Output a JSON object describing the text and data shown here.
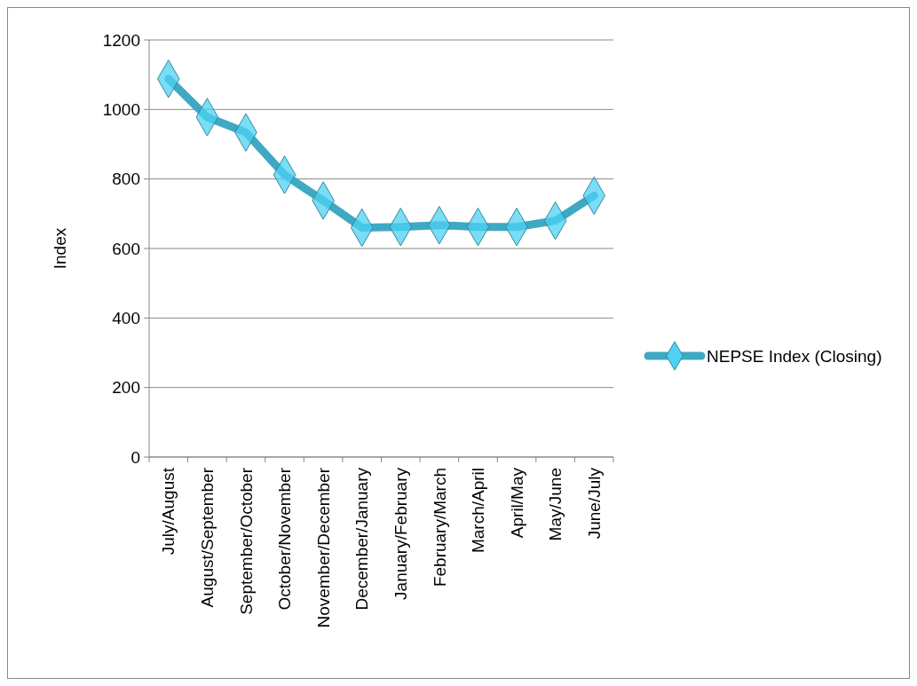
{
  "chart_data": {
    "type": "line",
    "ylabel": "Index",
    "categories": [
      "July/August",
      "August/September",
      "September/October",
      "October/November",
      "November/December",
      "December/January",
      "January/February",
      "February/March",
      "March/April",
      "April/May",
      "May/June",
      "June/July"
    ],
    "series": [
      {
        "name": "NEPSE Index (Closing)",
        "color": "#3fa9c4",
        "values": [
          1088,
          978,
          934,
          812,
          738,
          660,
          662,
          667,
          662,
          662,
          680,
          752
        ]
      }
    ],
    "ylim": [
      0,
      1200
    ],
    "yticks": [
      0,
      200,
      400,
      600,
      800,
      1000,
      1200
    ],
    "grid": "y",
    "legend": "right",
    "marker": "diamond",
    "line_style": "solid"
  }
}
